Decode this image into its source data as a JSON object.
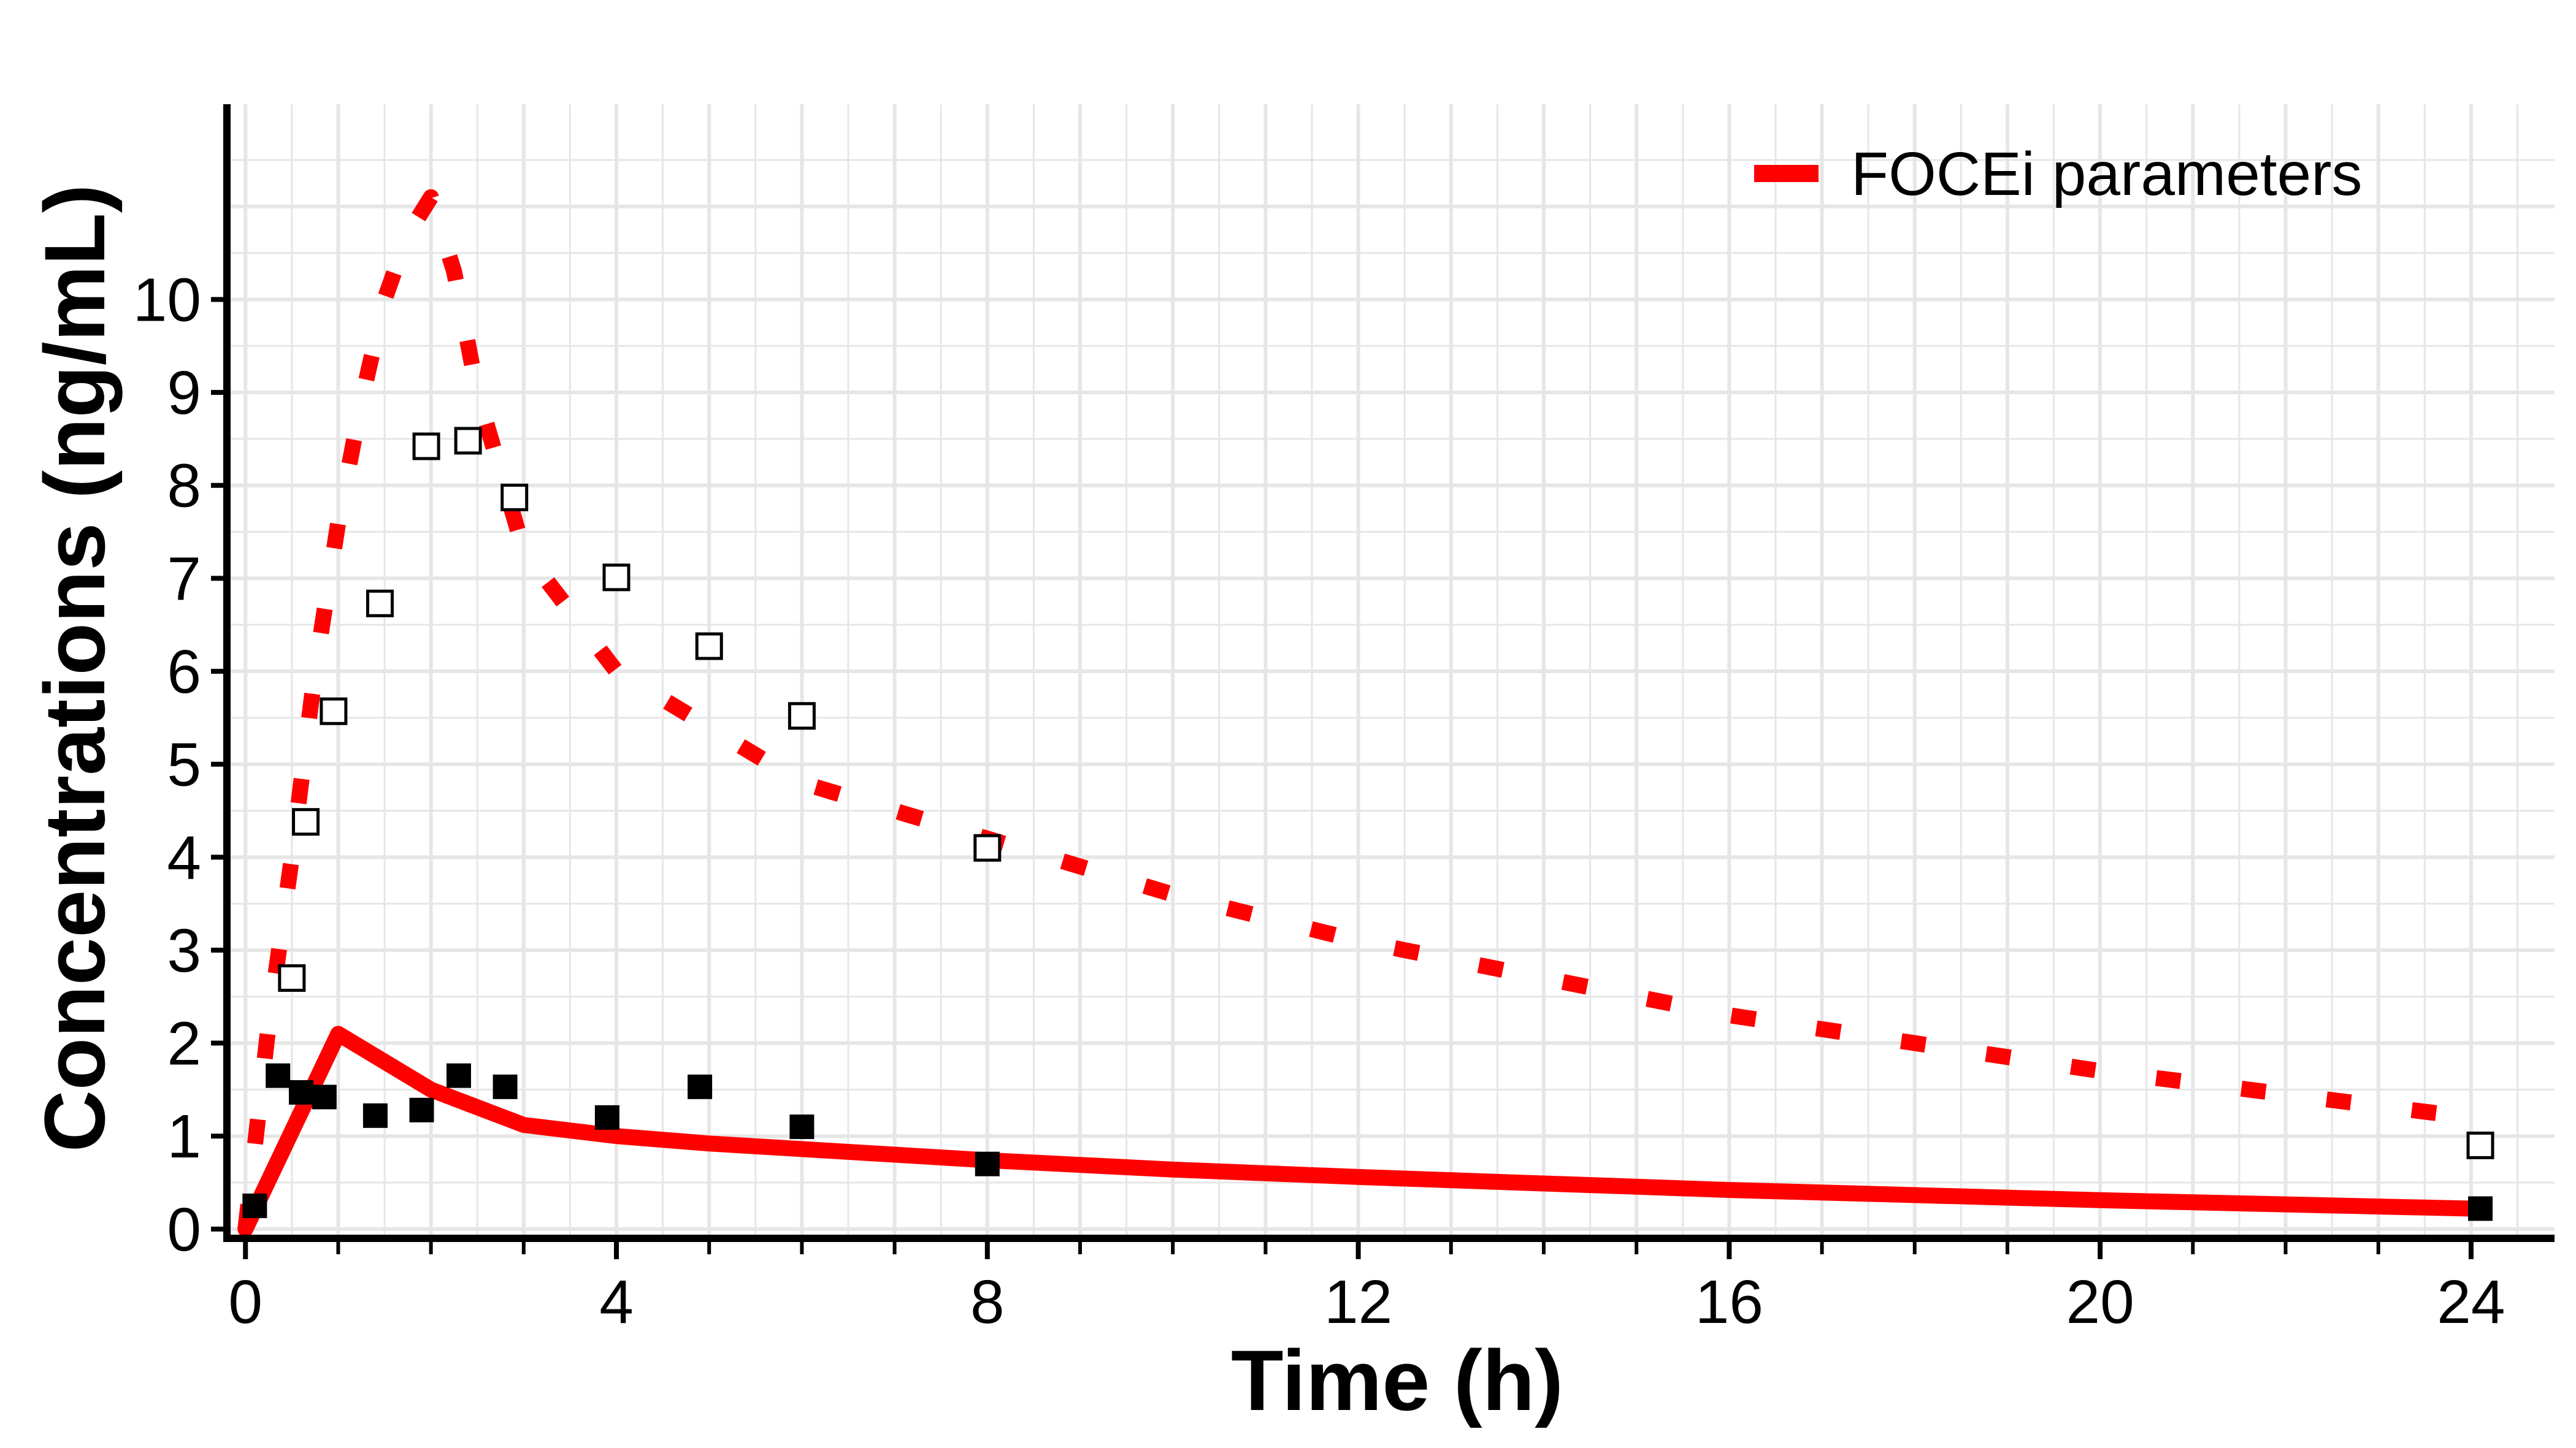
{
  "chart_data": {
    "type": "line",
    "title": "",
    "xlabel": "Time (h)",
    "ylabel": "Concentrations (ng/mL)",
    "xlim": [
      -0.2,
      24.9
    ],
    "ylim": [
      -0.1,
      12.1
    ],
    "xticks": [
      0,
      4,
      8,
      12,
      16,
      20,
      24
    ],
    "xticks_minor_step": 1,
    "yticks": [
      0,
      1,
      2,
      3,
      4,
      5,
      6,
      7,
      8,
      9,
      10
    ],
    "grid": true,
    "legend": {
      "position": "top-right",
      "entries": [
        "FOCEi parameters"
      ]
    },
    "colors": {
      "pred": "#ff0000",
      "grid": "#e6e6e6",
      "obs": "#000000"
    },
    "series": [
      {
        "name": "FOCEi parameters",
        "style": "solid",
        "x": [
          0,
          1,
          2,
          3,
          4,
          5,
          6,
          8,
          10,
          12,
          16,
          20,
          24
        ],
        "y": [
          0,
          2.1,
          1.5,
          1.12,
          1.0,
          0.92,
          0.86,
          0.74,
          0.64,
          0.56,
          0.42,
          0.31,
          0.22
        ]
      },
      {
        "style": "dotted",
        "x": [
          0,
          0.25,
          0.5,
          0.75,
          1.0,
          1.25,
          1.5,
          1.75,
          2.0,
          2.25,
          2.5,
          3.0,
          4.0,
          5.0,
          6.0,
          8.0,
          10.0,
          12.0,
          16.0,
          20.0,
          24.0
        ],
        "y": [
          0,
          2.2,
          4.0,
          6.0,
          7.6,
          8.9,
          10.0,
          10.7,
          11.1,
          10.3,
          9.0,
          7.3,
          6.0,
          5.4,
          4.8,
          4.2,
          3.6,
          3.1,
          2.3,
          1.7,
          1.2
        ]
      },
      {
        "marker": "filled-square",
        "x": [
          0.1,
          0.35,
          0.6,
          0.85,
          1.4,
          1.9,
          2.3,
          2.8,
          3.9,
          4.9,
          6.0,
          8.0,
          24.1
        ],
        "y": [
          0.25,
          1.65,
          1.47,
          1.42,
          1.22,
          1.28,
          1.65,
          1.53,
          1.2,
          1.53,
          1.1,
          0.7,
          0.22
        ]
      },
      {
        "marker": "open-square",
        "x": [
          0.5,
          0.65,
          0.95,
          1.45,
          1.95,
          2.4,
          2.9,
          4.0,
          5.0,
          6.0,
          8.0,
          24.1
        ],
        "y": [
          2.7,
          4.38,
          5.57,
          6.73,
          8.42,
          8.48,
          7.87,
          7.01,
          6.27,
          5.52,
          4.1,
          0.9
        ]
      }
    ]
  }
}
